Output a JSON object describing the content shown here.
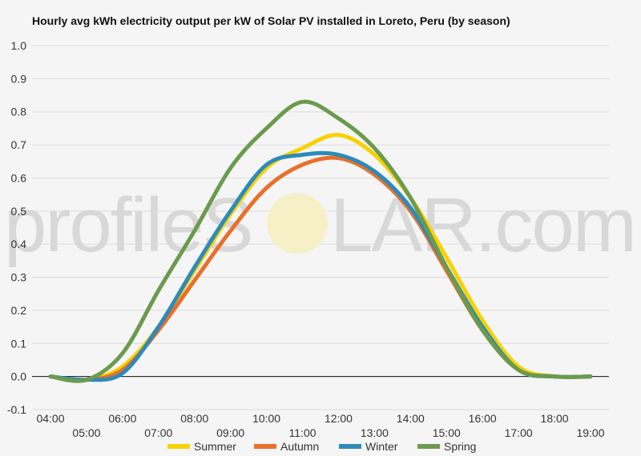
{
  "chart_data": {
    "type": "line",
    "title": "Hourly avg kWh electricity output per kW of Solar PV installed in Loreto, Peru (by season)",
    "watermark": {
      "left": "profileS",
      "right": "LAR.com"
    },
    "x_ticks_upper": [
      "04:00",
      "06:00",
      "08:00",
      "10:00",
      "12:00",
      "14:00",
      "16:00",
      "18:00"
    ],
    "x_ticks_lower": [
      "05:00",
      "07:00",
      "09:00",
      "11:00",
      "13:00",
      "15:00",
      "17:00",
      "19:00"
    ],
    "xlim": [
      4,
      19
    ],
    "ylim": [
      -0.1,
      1.0
    ],
    "y_ticks": [
      "1.0",
      "0.9",
      "0.8",
      "0.7",
      "0.6",
      "0.5",
      "0.4",
      "0.3",
      "0.2",
      "0.1",
      "0.0",
      "-0.1"
    ],
    "y_tick_values": [
      1.0,
      0.9,
      0.8,
      0.7,
      0.6,
      0.5,
      0.4,
      0.3,
      0.2,
      0.1,
      0.0,
      -0.1
    ],
    "grid": true,
    "legend_position": "bottom",
    "x": [
      4,
      5,
      6,
      7,
      8,
      9,
      10,
      11,
      12,
      13,
      14,
      15,
      16,
      17,
      18,
      19
    ],
    "series": [
      {
        "name": "Summer",
        "color": "#f7d200",
        "values": [
          0.0,
          -0.01,
          0.03,
          0.15,
          0.32,
          0.49,
          0.63,
          0.69,
          0.73,
          0.67,
          0.54,
          0.36,
          0.17,
          0.03,
          0.0,
          0.0
        ]
      },
      {
        "name": "Autumn",
        "color": "#e8702a",
        "values": [
          0.0,
          -0.01,
          0.02,
          0.14,
          0.29,
          0.44,
          0.57,
          0.64,
          0.66,
          0.61,
          0.5,
          0.32,
          0.14,
          0.02,
          0.0,
          0.0
        ]
      },
      {
        "name": "Winter",
        "color": "#2e8bb8",
        "values": [
          0.0,
          -0.01,
          0.01,
          0.15,
          0.33,
          0.5,
          0.64,
          0.67,
          0.67,
          0.62,
          0.51,
          0.33,
          0.15,
          0.02,
          0.0,
          0.0
        ]
      },
      {
        "name": "Spring",
        "color": "#6c9a4e",
        "values": [
          0.0,
          -0.01,
          0.07,
          0.26,
          0.44,
          0.63,
          0.75,
          0.83,
          0.78,
          0.69,
          0.54,
          0.33,
          0.14,
          0.02,
          0.0,
          0.0
        ]
      }
    ]
  }
}
